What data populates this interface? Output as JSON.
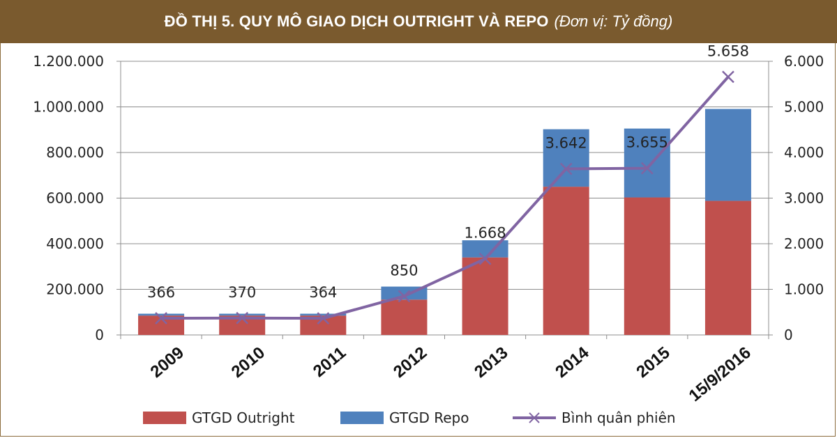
{
  "banner": {
    "title": "ĐỒ THỊ 5. QUY MÔ GIAO DỊCH OUTRIGHT VÀ REPO",
    "unit": "(Đơn vị: Tỷ đồng)"
  },
  "chart_data": {
    "type": "bar",
    "stacked": true,
    "title": "ĐỒ THỊ 5. QUY MÔ GIAO DỊCH OUTRIGHT VÀ REPO",
    "categories": [
      "2009",
      "2010",
      "2011",
      "2012",
      "2013",
      "2014",
      "2015",
      "15/9/2016"
    ],
    "series": [
      {
        "name": "GTGD Outright",
        "axis": "left",
        "color": "#c0504d",
        "values": [
          85000,
          85000,
          85000,
          155000,
          340000,
          650000,
          603000,
          588000
        ]
      },
      {
        "name": "GTGD Repo",
        "axis": "left",
        "color": "#4f81bd",
        "values": [
          8000,
          8000,
          8000,
          57000,
          75000,
          252000,
          302000,
          403000
        ]
      },
      {
        "name": "Bình quân phiên",
        "axis": "right",
        "type": "line",
        "color": "#8064a2",
        "values": [
          366,
          370,
          364,
          850,
          1668,
          3642,
          3655,
          5658
        ],
        "labels": [
          "366",
          "370",
          "364",
          "850",
          "1.668",
          "3.642",
          "3.655",
          "5.658"
        ]
      }
    ],
    "left_axis": {
      "ylim": [
        0,
        1200000
      ],
      "ticks": [
        "0",
        "200.000",
        "400.000",
        "600.000",
        "800.000",
        "1.000.000",
        "1.200.000"
      ]
    },
    "right_axis": {
      "ylim": [
        0,
        6000
      ],
      "ticks": [
        "0",
        "1.000",
        "2.000",
        "3.000",
        "4.000",
        "5.000",
        "6.000"
      ]
    },
    "grid": true,
    "legend": "bottom"
  }
}
